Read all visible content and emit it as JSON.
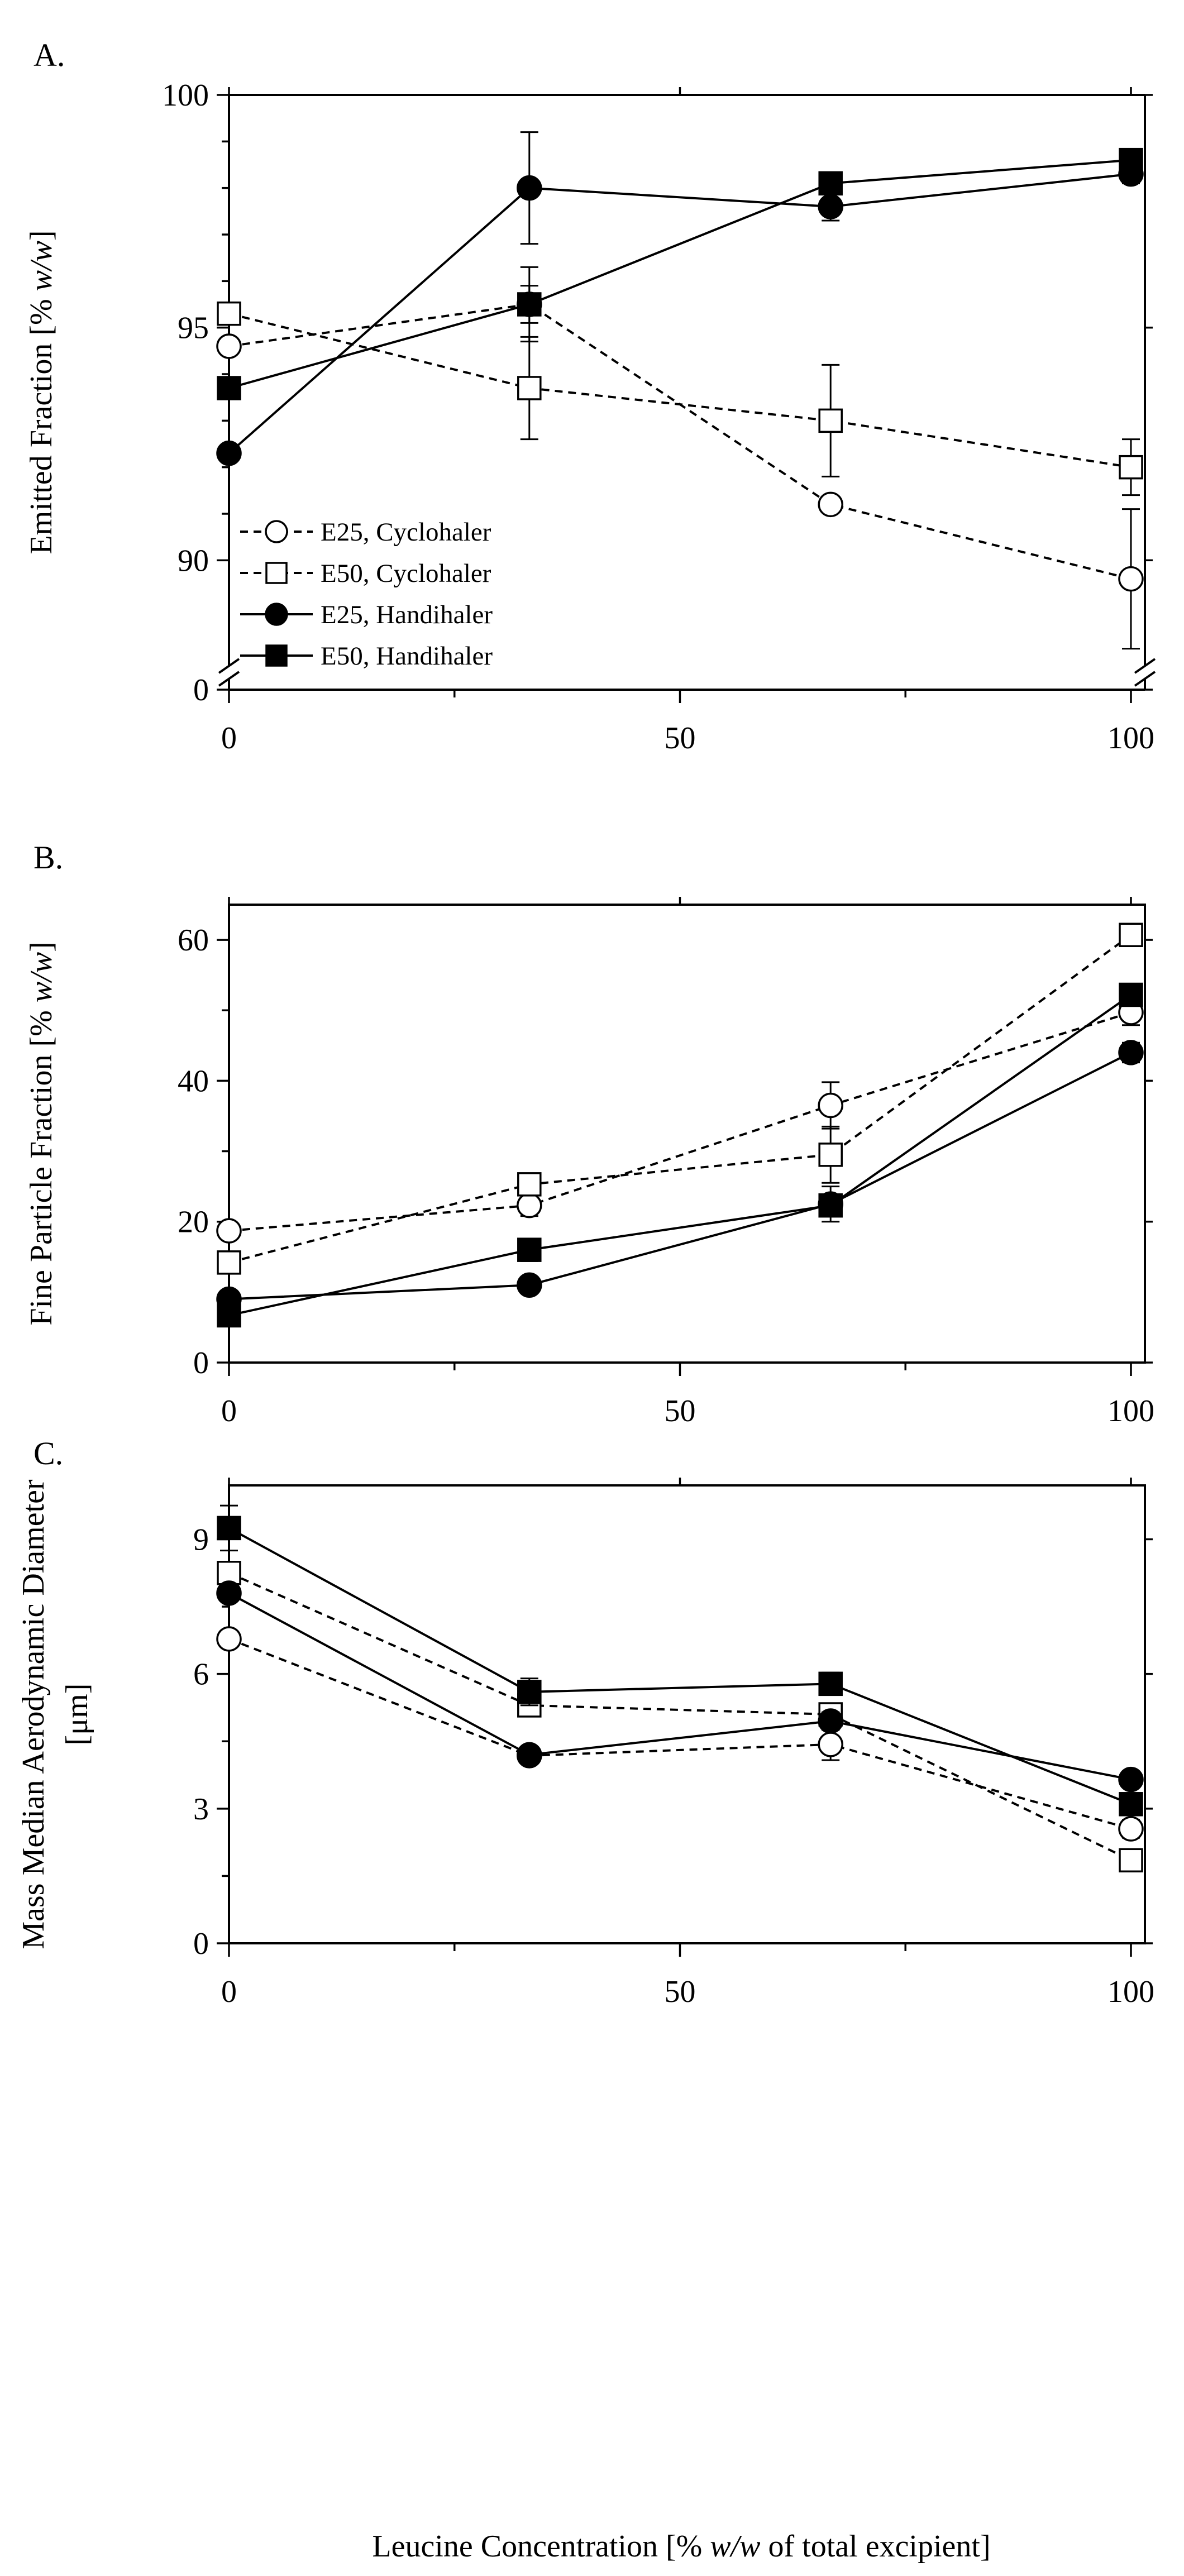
{
  "chart_data": [
    {
      "panel_label": "A.",
      "type": "line",
      "ylabel": "Emitted Fraction [% w/w]",
      "ylabel_parts": [
        "Emitted Fraction [% ",
        "w/w",
        "]"
      ],
      "xlabel": "",
      "x_ticks": [
        "0",
        "50",
        "100"
      ],
      "y_ticks": [
        "0",
        "90",
        "95",
        "100"
      ],
      "y_axis_break": "between 0 and 88",
      "xlim": [
        0,
        100
      ],
      "grid": false,
      "legend": {
        "placement": "bottom-left",
        "entries": [
          "E25, Cyclohaler",
          "E50, Cyclohaler",
          "E25, Handihaler",
          "E50, Handihaler"
        ]
      },
      "series": [
        {
          "name": "E25, Cyclohaler",
          "marker": "open-circle",
          "line": "dashed",
          "x": [
            0,
            33.3,
            66.7,
            100
          ],
          "y": [
            94.6,
            95.5,
            91.2,
            89.6
          ],
          "err": [
            0,
            0.4,
            0,
            1.5
          ]
        },
        {
          "name": "E50, Cyclohaler",
          "marker": "open-square",
          "line": "dashed",
          "x": [
            0,
            33.3,
            66.7,
            100
          ],
          "y": [
            95.3,
            93.7,
            93.0,
            92.0
          ],
          "err": [
            0,
            1.1,
            1.2,
            0.6
          ]
        },
        {
          "name": "E25, Handihaler",
          "marker": "filled-circle",
          "line": "solid",
          "x": [
            0,
            33.3,
            66.7,
            100
          ],
          "y": [
            92.3,
            98.0,
            97.6,
            98.3
          ],
          "err": [
            0,
            1.2,
            0.3,
            0.2
          ]
        },
        {
          "name": "E50, Handihaler",
          "marker": "filled-square",
          "line": "solid",
          "x": [
            0,
            33.3,
            66.7,
            100
          ],
          "y": [
            93.7,
            95.5,
            98.1,
            98.6
          ],
          "err": [
            0,
            0.8,
            0.2,
            0.2
          ]
        }
      ]
    },
    {
      "panel_label": "B.",
      "type": "line",
      "ylabel": "Fine Particle Fraction [% w/w]",
      "ylabel_parts": [
        "Fine Particle Fraction [% ",
        "w/w",
        "]"
      ],
      "xlabel": "",
      "x_ticks": [
        "0",
        "50",
        "100"
      ],
      "y_ticks": [
        "0",
        "20",
        "40",
        "60"
      ],
      "xlim": [
        0,
        100
      ],
      "ylim": [
        0,
        65
      ],
      "grid": false,
      "series": [
        {
          "name": "E25, Cyclohaler",
          "marker": "open-circle",
          "line": "dashed",
          "x": [
            0,
            33.3,
            66.7,
            100
          ],
          "y": [
            18.7,
            22.3,
            36.5,
            49.7
          ],
          "err": [
            0,
            1.5,
            3.3,
            1.8
          ]
        },
        {
          "name": "E50, Cyclohaler",
          "marker": "open-square",
          "line": "dashed",
          "x": [
            0,
            33.3,
            66.7,
            100
          ],
          "y": [
            14.2,
            25.3,
            29.5,
            60.7
          ],
          "err": [
            0,
            0.8,
            4.0,
            0.6
          ]
        },
        {
          "name": "E25, Handihaler",
          "marker": "filled-circle",
          "line": "solid",
          "x": [
            0,
            33.3,
            66.7,
            100
          ],
          "y": [
            9.0,
            11.0,
            22.5,
            44.0
          ],
          "err": [
            0,
            1.0,
            2.5,
            1.4
          ]
        },
        {
          "name": "E50, Handihaler",
          "marker": "filled-square",
          "line": "solid",
          "x": [
            0,
            33.3,
            66.7,
            100
          ],
          "y": [
            6.7,
            16.0,
            22.3,
            52.2
          ],
          "err": [
            0,
            1.6,
            1.0,
            0.8
          ]
        }
      ]
    },
    {
      "panel_label": "C.",
      "type": "line",
      "ylabel_lines": [
        "Mass Median Aerodynamic Diameter",
        "[μm]"
      ],
      "xlabel": "Leucine Concentration [% w/w of total excipient]",
      "xlabel_parts": [
        "Leucine Concentration [% ",
        "w/w",
        " of total excipient]"
      ],
      "x_ticks": [
        "0",
        "50",
        "100"
      ],
      "y_ticks": [
        "0",
        "3",
        "6",
        "9"
      ],
      "xlim": [
        0,
        100
      ],
      "ylim": [
        0,
        10.2
      ],
      "grid": false,
      "series": [
        {
          "name": "E25, Cyclohaler",
          "marker": "open-circle",
          "line": "dashed",
          "x": [
            0,
            33.3,
            66.7,
            100
          ],
          "y": [
            6.78,
            4.18,
            4.43,
            2.55
          ],
          "err": [
            0,
            0.15,
            0.35,
            0.2
          ]
        },
        {
          "name": "E50, Cyclohaler",
          "marker": "open-square",
          "line": "dashed",
          "x": [
            0,
            33.3,
            66.7,
            100
          ],
          "y": [
            8.25,
            5.3,
            5.1,
            1.85
          ],
          "err": [
            0,
            0.25,
            0.1,
            0.1
          ]
        },
        {
          "name": "E25, Handihaler",
          "marker": "filled-circle",
          "line": "solid",
          "x": [
            0,
            33.3,
            66.7,
            100
          ],
          "y": [
            7.8,
            4.2,
            4.95,
            3.65
          ],
          "err": [
            0,
            0.15,
            0.2,
            0.1
          ]
        },
        {
          "name": "E50, Handihaler",
          "marker": "filled-square",
          "line": "solid",
          "x": [
            0,
            33.3,
            66.7,
            100
          ],
          "y": [
            9.25,
            5.6,
            5.78,
            3.1
          ],
          "err": [
            0.5,
            0.3,
            0.25,
            0.15
          ]
        }
      ]
    }
  ]
}
